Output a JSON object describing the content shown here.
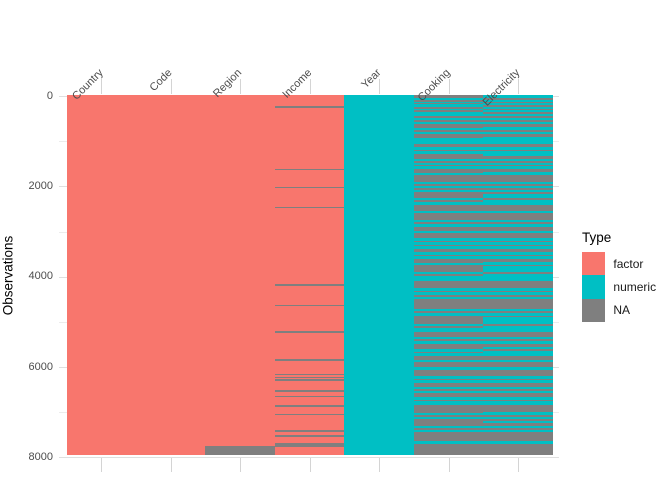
{
  "page": {
    "background": "#ffffff"
  },
  "chart_data": {
    "type": "heatmap",
    "title": "",
    "ylabel": "Observations",
    "x_axis_position": "top",
    "x_label_angle_deg": 45,
    "grid": true,
    "legend_position": "right",
    "y_ticks": [
      0,
      2000,
      4000,
      6000,
      8000
    ],
    "y_tick_labels": [
      "0",
      "2000",
      "4000",
      "6000",
      "8000"
    ],
    "y_minor_step": 1000,
    "ylim": [
      0,
      8000
    ],
    "total_observations": 7950,
    "y_axis_reversed": true,
    "type_colors": {
      "factor": "#F8766D",
      "numeric": "#00BFC4",
      "NA": "#7F7F7F"
    },
    "axis_text_color": "#4d4d4d",
    "legend": {
      "title": "Type",
      "entries": [
        {
          "label": "factor",
          "type": "factor"
        },
        {
          "label": "numeric",
          "type": "numeric"
        },
        {
          "label": "NA",
          "type": "NA"
        }
      ]
    },
    "columns": [
      {
        "name": "Country",
        "base_type": "factor",
        "na_bands": []
      },
      {
        "name": "Code",
        "base_type": "factor",
        "na_bands": []
      },
      {
        "name": "Region",
        "base_type": "factor",
        "na_bands": [
          [
            7745,
            7950
          ]
        ]
      },
      {
        "name": "Income",
        "base_type": "factor",
        "na_bands": [
          [
            225,
            260
          ],
          [
            1605,
            1640
          ],
          [
            2005,
            2040
          ],
          [
            2450,
            2485
          ],
          [
            4170,
            4205
          ],
          [
            4615,
            4650
          ],
          [
            5205,
            5240
          ],
          [
            5830,
            5865
          ],
          [
            6150,
            6185
          ],
          [
            6215,
            6245
          ],
          [
            6270,
            6300
          ],
          [
            6510,
            6545
          ],
          [
            6635,
            6670
          ],
          [
            6850,
            6885
          ],
          [
            7035,
            7070
          ],
          [
            7395,
            7430
          ],
          [
            7505,
            7540
          ],
          [
            7680,
            7765
          ]
        ]
      },
      {
        "name": "Year",
        "base_type": "numeric",
        "na_bands": []
      },
      {
        "name": "Cooking",
        "base_type": "numeric",
        "na_bands": [
          [
            0,
            42
          ],
          [
            95,
            128
          ],
          [
            158,
            190
          ],
          [
            238,
            284
          ],
          [
            315,
            362
          ],
          [
            450,
            498
          ],
          [
            538,
            578
          ],
          [
            610,
            700
          ],
          [
            758,
            808
          ],
          [
            840,
            925
          ],
          [
            1068,
            1132
          ],
          [
            1185,
            1228
          ],
          [
            1290,
            1388
          ],
          [
            1438,
            1475
          ],
          [
            1518,
            1558
          ],
          [
            1608,
            1700
          ],
          [
            1748,
            1905
          ],
          [
            1948,
            1990
          ],
          [
            2038,
            2085
          ],
          [
            2128,
            2260
          ],
          [
            2305,
            2348
          ],
          [
            2418,
            2545
          ],
          [
            2590,
            2748
          ],
          [
            2798,
            2845
          ],
          [
            2888,
            2985
          ],
          [
            3028,
            3155
          ],
          [
            3198,
            3240
          ],
          [
            3288,
            3330
          ],
          [
            3378,
            3458
          ],
          [
            3508,
            3548
          ],
          [
            3598,
            3690
          ],
          [
            3738,
            3900
          ],
          [
            3948,
            3990
          ],
          [
            4098,
            4255
          ],
          [
            4308,
            4348
          ],
          [
            4398,
            4440
          ],
          [
            4488,
            4718
          ],
          [
            4768,
            4808
          ],
          [
            4858,
            5045
          ],
          [
            5088,
            5128
          ],
          [
            5225,
            5345
          ],
          [
            5388,
            5428
          ],
          [
            5478,
            5608
          ],
          [
            5658,
            5698
          ],
          [
            5748,
            5838
          ],
          [
            5888,
            6008
          ],
          [
            6058,
            6208
          ],
          [
            6258,
            6298
          ],
          [
            6348,
            6438
          ],
          [
            6488,
            6528
          ],
          [
            6578,
            6668
          ],
          [
            6718,
            6758
          ],
          [
            6848,
            7008
          ],
          [
            7058,
            7098
          ],
          [
            7148,
            7308
          ],
          [
            7358,
            7398
          ],
          [
            7428,
            7648
          ],
          [
            7692,
            7950
          ]
        ]
      },
      {
        "name": "Electricity",
        "base_type": "numeric",
        "na_bands": [
          [
            42,
            95
          ],
          [
            128,
            158
          ],
          [
            190,
            238
          ],
          [
            284,
            315
          ],
          [
            362,
            408
          ],
          [
            450,
            498
          ],
          [
            538,
            578
          ],
          [
            618,
            692
          ],
          [
            758,
            808
          ],
          [
            848,
            915
          ],
          [
            1068,
            1125
          ],
          [
            1185,
            1225
          ],
          [
            1338,
            1388
          ],
          [
            1438,
            1475
          ],
          [
            1518,
            1558
          ],
          [
            1608,
            1688
          ],
          [
            1748,
            1898
          ],
          [
            1948,
            1990
          ],
          [
            2038,
            2085
          ],
          [
            2128,
            2165
          ],
          [
            2258,
            2300
          ],
          [
            2418,
            2540
          ],
          [
            2590,
            2745
          ],
          [
            2798,
            2845
          ],
          [
            2888,
            2980
          ],
          [
            3028,
            3148
          ],
          [
            3198,
            3240
          ],
          [
            3288,
            3330
          ],
          [
            3378,
            3455
          ],
          [
            3508,
            3548
          ],
          [
            3598,
            3685
          ],
          [
            3738,
            3768
          ],
          [
            3898,
            3945
          ],
          [
            4098,
            4250
          ],
          [
            4308,
            4348
          ],
          [
            4398,
            4440
          ],
          [
            4488,
            4715
          ],
          [
            4768,
            4808
          ],
          [
            4858,
            4892
          ],
          [
            5038,
            5085
          ],
          [
            5225,
            5340
          ],
          [
            5388,
            5428
          ],
          [
            5478,
            5545
          ],
          [
            5598,
            5645
          ],
          [
            5748,
            5835
          ],
          [
            5888,
            6005
          ],
          [
            6058,
            6198
          ],
          [
            6258,
            6298
          ],
          [
            6348,
            6435
          ],
          [
            6488,
            6528
          ],
          [
            6578,
            6665
          ],
          [
            6718,
            6758
          ],
          [
            6848,
            7000
          ],
          [
            7058,
            7098
          ],
          [
            7148,
            7192
          ],
          [
            7232,
            7305
          ],
          [
            7358,
            7398
          ],
          [
            7428,
            7648
          ],
          [
            7692,
            7950
          ]
        ]
      }
    ]
  }
}
